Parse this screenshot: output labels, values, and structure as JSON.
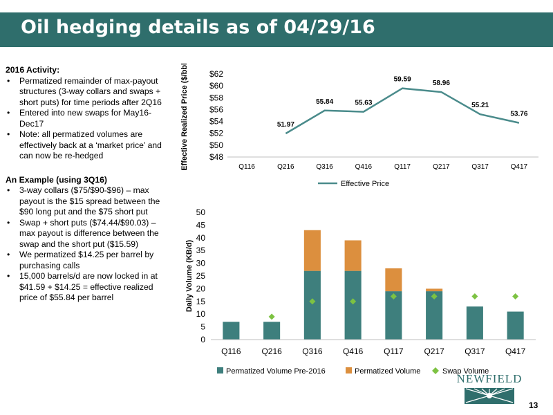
{
  "page": {
    "title": "Oil hedging details as of 04/29/16",
    "page_number": "13",
    "logo_text": "NEWFIELD"
  },
  "left_text": {
    "activity": {
      "heading": "2016 Activity:",
      "bullets": [
        "Permatized remainder of max-payout structures (3-way collars and swaps + short puts) for time periods after 2Q16",
        "Entered into new swaps for May16-Dec17",
        "Note:  all permatized volumes are effectively back at a ‘market price’ and can now be re-hedged"
      ]
    },
    "example": {
      "heading": "An Example (using 3Q16)",
      "bullets": [
        "3-way collars ($75/$90-$96) – max payout is the $15 spread between the $90 long put and the $75 short put",
        "Swap + short puts ($74.44/$90.03) – max payout is difference between the swap and the short put ($15.59)",
        "We permatized $14.25 per barrel by purchasing calls",
        "15,000 barrels/d are now locked in at $41.59 + $14.25 = effective realized price of $55.84 per barrel"
      ]
    }
  },
  "colors": {
    "title_bar": "#2f6e6c",
    "line": "#4a8b8b",
    "pre2016": "#3e7f7d",
    "permatized": "#dc8f3e",
    "swap": "#7dc242",
    "axis": "#bfbfbf"
  },
  "chart_data": [
    {
      "type": "line",
      "categories": [
        "Q116",
        "Q216",
        "Q316",
        "Q416",
        "Q117",
        "Q217",
        "Q317",
        "Q417"
      ],
      "series": [
        {
          "name": "Effective Price",
          "values": [
            null,
            51.97,
            55.84,
            55.63,
            59.59,
            58.96,
            55.21,
            53.76
          ]
        }
      ],
      "data_labels": [
        "",
        "51.97",
        "55.84",
        "55.63",
        "59.59",
        "58.96",
        "55.21",
        "53.76"
      ],
      "ylabel": "Effective Realized Price ($/bbl)",
      "ylim": [
        48,
        62
      ],
      "yticks": [
        "$48",
        "$50",
        "$52",
        "$54",
        "$56",
        "$58",
        "$60",
        "$62"
      ],
      "grid": false,
      "legend": "bottom"
    },
    {
      "type": "bar",
      "stacked": true,
      "categories": [
        "Q116",
        "Q216",
        "Q316",
        "Q416",
        "Q117",
        "Q217",
        "Q317",
        "Q417"
      ],
      "series": [
        {
          "name": "Permatized Volume Pre-2016",
          "values": [
            7,
            7,
            27,
            27,
            19,
            19,
            13,
            11
          ]
        },
        {
          "name": "Permatized Volume",
          "values": [
            0,
            0,
            16,
            12,
            9,
            1,
            0,
            0
          ]
        },
        {
          "name": "Swap Volume",
          "kind": "marker",
          "values": [
            null,
            9,
            15,
            15,
            17,
            17,
            17,
            17
          ]
        }
      ],
      "ylabel": "Daily Volume (KB/d)",
      "ylim": [
        0,
        50
      ],
      "yticks": [
        "0",
        "5",
        "10",
        "15",
        "20",
        "25",
        "30",
        "35",
        "40",
        "45",
        "50"
      ],
      "grid": false,
      "legend": "bottom"
    }
  ]
}
